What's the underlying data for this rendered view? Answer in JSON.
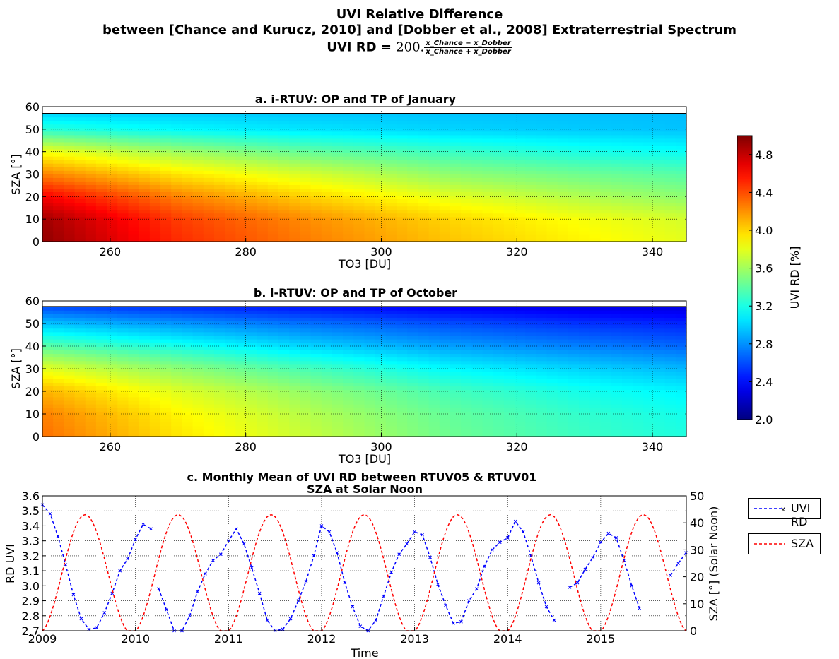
{
  "title": {
    "line1": "UVI Relative Difference",
    "line2": "between [Chance and Kurucz, 2010] and [Dobber et al., 2008] Extraterrestrial Spectrum",
    "line3_label": "UVI RD =",
    "line3_formula_prefix": "200.",
    "line3_formula_num": "x_Chance − x_Dobber",
    "line3_formula_den": "x_Chance + x_Dobber"
  },
  "colors": {
    "uvi_rd": "#0000ff",
    "sza": "#ff0000",
    "colormap": "jet"
  },
  "chart_data": [
    {
      "type": "heatmap",
      "title": "a. i-RTUV: OP and TP of January",
      "xlabel": "TO3 [DU]",
      "ylabel": "SZA [°]",
      "xlim": [
        250,
        345
      ],
      "ylim": [
        0,
        60
      ],
      "data_ylim": [
        0,
        57
      ],
      "xticks": [
        260,
        280,
        300,
        320,
        340
      ],
      "yticks": [
        0,
        10,
        20,
        30,
        40,
        50,
        60
      ],
      "grid": true,
      "x_samples": [
        250,
        270,
        290,
        310,
        330,
        345
      ],
      "y_samples": [
        0,
        10,
        20,
        30,
        40,
        50,
        57
      ],
      "z": [
        [
          4.95,
          4.5,
          4.25,
          4.05,
          3.9,
          3.8
        ],
        [
          4.9,
          4.45,
          4.2,
          4.0,
          3.85,
          3.75
        ],
        [
          4.65,
          4.25,
          4.0,
          3.8,
          3.65,
          3.55
        ],
        [
          4.25,
          3.95,
          3.75,
          3.55,
          3.45,
          3.38
        ],
        [
          3.85,
          3.6,
          3.42,
          3.3,
          3.2,
          3.15
        ],
        [
          3.25,
          3.12,
          3.05,
          3.0,
          2.97,
          2.95
        ],
        [
          3.0,
          2.98,
          2.96,
          2.95,
          2.94,
          2.93
        ]
      ]
    },
    {
      "type": "heatmap",
      "title": "b. i-RTUV: OP and TP of October",
      "xlabel": "TO3 [DU]",
      "ylabel": "SZA [°]",
      "xlim": [
        250,
        345
      ],
      "ylim": [
        0,
        60
      ],
      "data_ylim": [
        0,
        57.5
      ],
      "xticks": [
        260,
        280,
        300,
        320,
        340
      ],
      "yticks": [
        0,
        10,
        20,
        30,
        40,
        50,
        60
      ],
      "grid": true,
      "x_samples": [
        250,
        270,
        290,
        310,
        330,
        345
      ],
      "y_samples": [
        0,
        10,
        20,
        30,
        40,
        50,
        57.5
      ],
      "z": [
        [
          4.3,
          3.95,
          3.7,
          3.45,
          3.3,
          3.22
        ],
        [
          4.25,
          3.9,
          3.65,
          3.42,
          3.27,
          3.18
        ],
        [
          4.1,
          3.78,
          3.55,
          3.33,
          3.18,
          3.1
        ],
        [
          3.8,
          3.55,
          3.33,
          3.12,
          3.0,
          2.92
        ],
        [
          3.4,
          3.2,
          3.0,
          2.85,
          2.75,
          2.68
        ],
        [
          2.95,
          2.82,
          2.7,
          2.6,
          2.52,
          2.48
        ],
        [
          2.6,
          2.5,
          2.42,
          2.35,
          2.3,
          2.28
        ]
      ]
    },
    {
      "type": "line",
      "title": "c. Monthly Mean of UVI RD between RTUV05 & RTUV01",
      "subtitle": "SZA at Solar Noon",
      "xlabel": "Time",
      "ylabel": "RD UVI",
      "ylabel_right": "SZA [°] (Solar Noon)",
      "xlim": [
        2009.0,
        2015.92
      ],
      "ylim": [
        2.7,
        3.6
      ],
      "ylim_right": [
        0,
        50
      ],
      "xticks": [
        2009,
        2010,
        2011,
        2012,
        2013,
        2014,
        2015
      ],
      "yticks": [
        2.7,
        2.8,
        2.9,
        3.0,
        3.1,
        3.2,
        3.3,
        3.4,
        3.5,
        3.6
      ],
      "yticks_right": [
        0,
        10,
        20,
        30,
        40,
        50
      ],
      "grid": true,
      "legend_position": "right-outside",
      "series": [
        {
          "name": "UVI RD",
          "axis": "left",
          "style": "dashed-with-x-markers",
          "segments": [
            {
              "start_month": 0,
              "values": [
                3.54,
                3.48,
                3.33,
                3.14,
                2.94,
                2.78,
                2.71,
                2.72,
                2.82,
                2.95,
                3.1,
                3.18,
                3.31,
                3.41,
                3.38
              ]
            },
            {
              "start_month": 15,
              "values": [
                2.98,
                2.84,
                2.7,
                2.7,
                2.8,
                2.96,
                3.08,
                3.17,
                3.21,
                3.3,
                3.38,
                3.28,
                3.12,
                2.95,
                2.77,
                2.7,
                2.71,
                2.78,
                2.9,
                3.03,
                3.2,
                3.4,
                3.36,
                3.22,
                3.02,
                2.86,
                2.73,
                2.7,
                2.77,
                2.93,
                3.09,
                3.21,
                3.28,
                3.36,
                3.34,
                3.19,
                3.01,
                2.87,
                2.75,
                2.76,
                2.9,
                2.98,
                3.13,
                3.24,
                3.29,
                3.32,
                3.43,
                3.36,
                3.2,
                3.02,
                2.86,
                2.77
              ]
            },
            {
              "start_month": 68,
              "values": [
                2.99,
                3.02,
                3.11,
                3.19,
                3.29,
                3.35,
                3.32,
                3.17,
                3.0,
                2.85
              ]
            },
            {
              "start_month": 81,
              "values": [
                3.07,
                3.15,
                3.22
              ]
            }
          ]
        },
        {
          "name": "SZA",
          "axis": "right",
          "style": "dashed",
          "sza_model": {
            "mean": 21,
            "amplitude": 22,
            "peak_month": 5.5
          }
        }
      ]
    }
  ],
  "colorbar": {
    "label": "UVI RD [%]",
    "min": 2.0,
    "max": 5.0,
    "ticks": [
      "2.0",
      "2.4",
      "2.8",
      "3.2",
      "3.6",
      "4.0",
      "4.4",
      "4.8"
    ]
  },
  "legend": {
    "uvi_label": "UVI RD",
    "sza_label": "SZA"
  }
}
